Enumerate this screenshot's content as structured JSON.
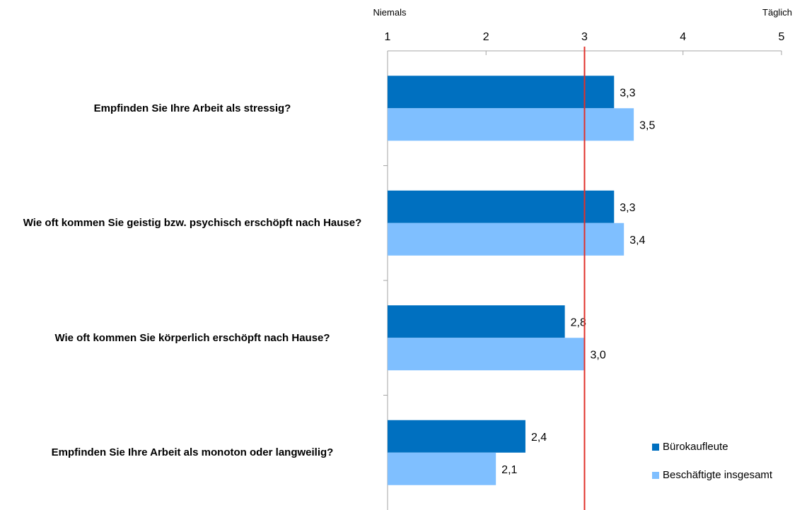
{
  "chart_data": {
    "type": "bar",
    "orientation": "horizontal",
    "categories": [
      "Empfinden Sie Ihre Arbeit als stressig?",
      "Wie oft kommen Sie geistig bzw. psychisch erschöpft nach Hause?",
      "Wie oft kommen Sie körperlich erschöpft nach Hause?",
      "Empfinden Sie Ihre Arbeit als monoton oder langweilig?"
    ],
    "series": [
      {
        "name": "Bürokaufleute",
        "values": [
          3.3,
          3.3,
          2.8,
          2.4
        ],
        "labels": [
          "3,3",
          "3,3",
          "2,8",
          "2,4"
        ],
        "color": "#0070c0"
      },
      {
        "name": "Beschäftigte insgesamt",
        "values": [
          3.5,
          3.4,
          3.0,
          2.1
        ],
        "labels": [
          "3,5",
          "3,4",
          "3,0",
          "2,1"
        ],
        "color": "#7fbfff"
      }
    ],
    "xlim": [
      1,
      5
    ],
    "x_ticks": [
      1,
      2,
      3,
      4,
      5
    ],
    "x_tick_labels": [
      "1",
      "2",
      "3",
      "4",
      "5"
    ],
    "scale_min_label": "Niemals",
    "scale_max_label": "Täglich",
    "reference_line": {
      "value": 3,
      "color": "#e0302a"
    },
    "axis_position": "top",
    "legend_position": "bottom-right",
    "grid": false
  }
}
